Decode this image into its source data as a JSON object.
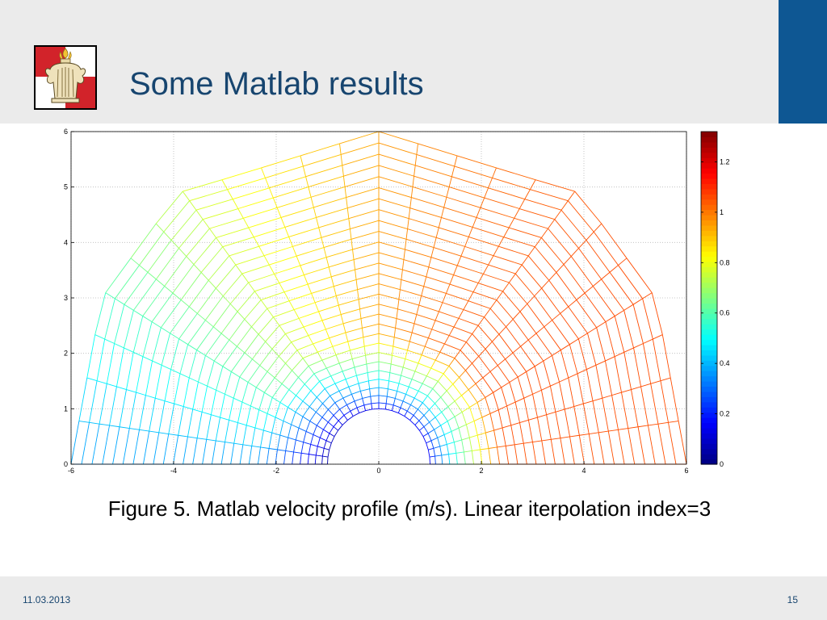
{
  "slide": {
    "title": "Some Matlab results",
    "caption": "Figure 5. Matlab velocity profile (m/s).  Linear iterpolation index=3",
    "footer_date": "11.03.2013",
    "page_number": "15",
    "accent_color": "#0e5793",
    "title_color": "#17456f"
  },
  "logo": {
    "icon": "heraldic-shield-logo"
  },
  "chart_data": {
    "type": "heatmap",
    "subtype": "colored-mesh-contour",
    "title": "",
    "xlabel": "",
    "ylabel": "",
    "xlim": [
      -6,
      6
    ],
    "ylim": [
      0,
      6
    ],
    "xticks": [
      -6,
      -4,
      -2,
      0,
      2,
      4,
      6
    ],
    "yticks": [
      0,
      1,
      2,
      3,
      4,
      5,
      6
    ],
    "grid": true,
    "domain": {
      "inner_hole_radius": 1,
      "outer_boundary": [
        [
          -6,
          0
        ],
        [
          -5.4,
          3
        ],
        [
          -3.9,
          4.9
        ],
        [
          -2.8,
          5.2
        ],
        [
          0,
          6
        ],
        [
          2.8,
          5.2
        ],
        [
          3.9,
          4.9
        ],
        [
          5.4,
          3
        ],
        [
          6,
          0
        ]
      ]
    },
    "colorbar": {
      "position": "right",
      "range": [
        0,
        1.32
      ],
      "ticks": [
        0,
        0.2,
        0.4,
        0.6,
        0.8,
        1,
        1.2
      ],
      "colormap": "jet"
    },
    "velocity_description_values": {
      "min": 0,
      "max": 1.32
    }
  }
}
